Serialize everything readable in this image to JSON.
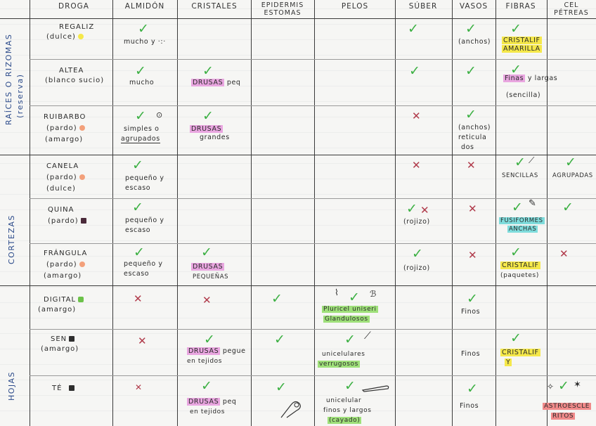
{
  "headers": {
    "droga": "DROGA",
    "almidon": "ALMIDÓN",
    "cristales": "CRISTALES",
    "epidermis": "EPIDERMIS ESTOMAS",
    "pelos": "PELOS",
    "suber": "SÚBER",
    "vasos": "VASOS",
    "fibras": "FIBRAS",
    "cel_petreas": "CEL PÉTREAS"
  },
  "groups": {
    "raices": "RAÍCES O RIZOMAS",
    "raices_sub": "(reserva)",
    "cortezas": "CORTEZAS",
    "hojas": "HOJAS"
  },
  "rows": {
    "regaliz": {
      "drug": "REGALIZ",
      "drug2": "(dulce)",
      "almidon": "mucho y",
      "vasos": "(anchos)",
      "fibras1": "CRISTALIF",
      "fibras2": "AMARILLA"
    },
    "altea": {
      "drug": "ALTEA",
      "drug2": "(blanco sucio)",
      "almidon": "mucho",
      "cristales_hl": "DRUSAS",
      "cristales": "peq",
      "fibras1": "Finas",
      "fibras2": "y largas",
      "fibras3": "(sencilla)"
    },
    "ruibarbo": {
      "drug": "RUIBARBO",
      "drug2": "(pardo)",
      "drug3": "(amargo)",
      "almidon1": "simples o",
      "almidon2": "agrupados",
      "cristales_hl": "DRUSAS",
      "cristales": "grandes",
      "vasos1": "(anchos)",
      "vasos2": "reticula",
      "vasos3": "dos"
    },
    "canela": {
      "drug": "CANELA",
      "drug2": "(pardo)",
      "drug3": "(dulce)",
      "almidon1": "pequeño y",
      "almidon2": "escaso",
      "fibras": "SENCILLAS",
      "cel": "AGRUPADAS"
    },
    "quina": {
      "drug": "QUINA",
      "drug2": "(pardo)",
      "almidon1": "pequeño y",
      "almidon2": "escaso",
      "suber": "(rojizo)",
      "fibras1": "FUSIFORMES",
      "fibras2": "ANCHAS"
    },
    "frangula": {
      "drug": "FRÁNGULA",
      "drug2": "(pardo)",
      "drug3": "(amargo)",
      "almidon1": "pequeño y",
      "almidon2": "escaso",
      "cristales_hl": "DRUSAS",
      "cristales": "PEQUEÑAS",
      "suber": "(rojizo)",
      "fibras1": "CRISTALIF",
      "fibras2": "(paquetes)"
    },
    "digital": {
      "drug": "DIGITAL",
      "drug2": "(amargo)",
      "pelos1": "Pluricel uniseri",
      "pelos2": "Glandulosos",
      "vasos": "Finos"
    },
    "sen": {
      "drug": "SEN",
      "drug2": "(amargo)",
      "cristales_hl": "DRUSAS",
      "cristales": "pegue",
      "cristales2": "en tejidos",
      "pelos1": "unicelulares",
      "pelos2": "verrugosos",
      "vasos": "Finos",
      "fibras1": "CRISTALIF",
      "fibras2": "Y"
    },
    "te": {
      "drug": "TÉ",
      "cristales_hl": "DRUSAS",
      "cristales": "peq",
      "cristales2": "en tejidos",
      "pelos1": "unicelular",
      "pelos2": "finos y largos",
      "pelos3": "(cayado)",
      "vasos": "Finos",
      "cel1": "ASTROESCLE",
      "cel2": "RITOS"
    }
  },
  "colors": {
    "check": "#3cb043",
    "cross": "#b03a4a",
    "yellow": "#f5e84a",
    "pink": "#e9a6e0",
    "green": "#9fe07a",
    "cyan": "#7fdcdc",
    "red": "#f08a8a"
  }
}
